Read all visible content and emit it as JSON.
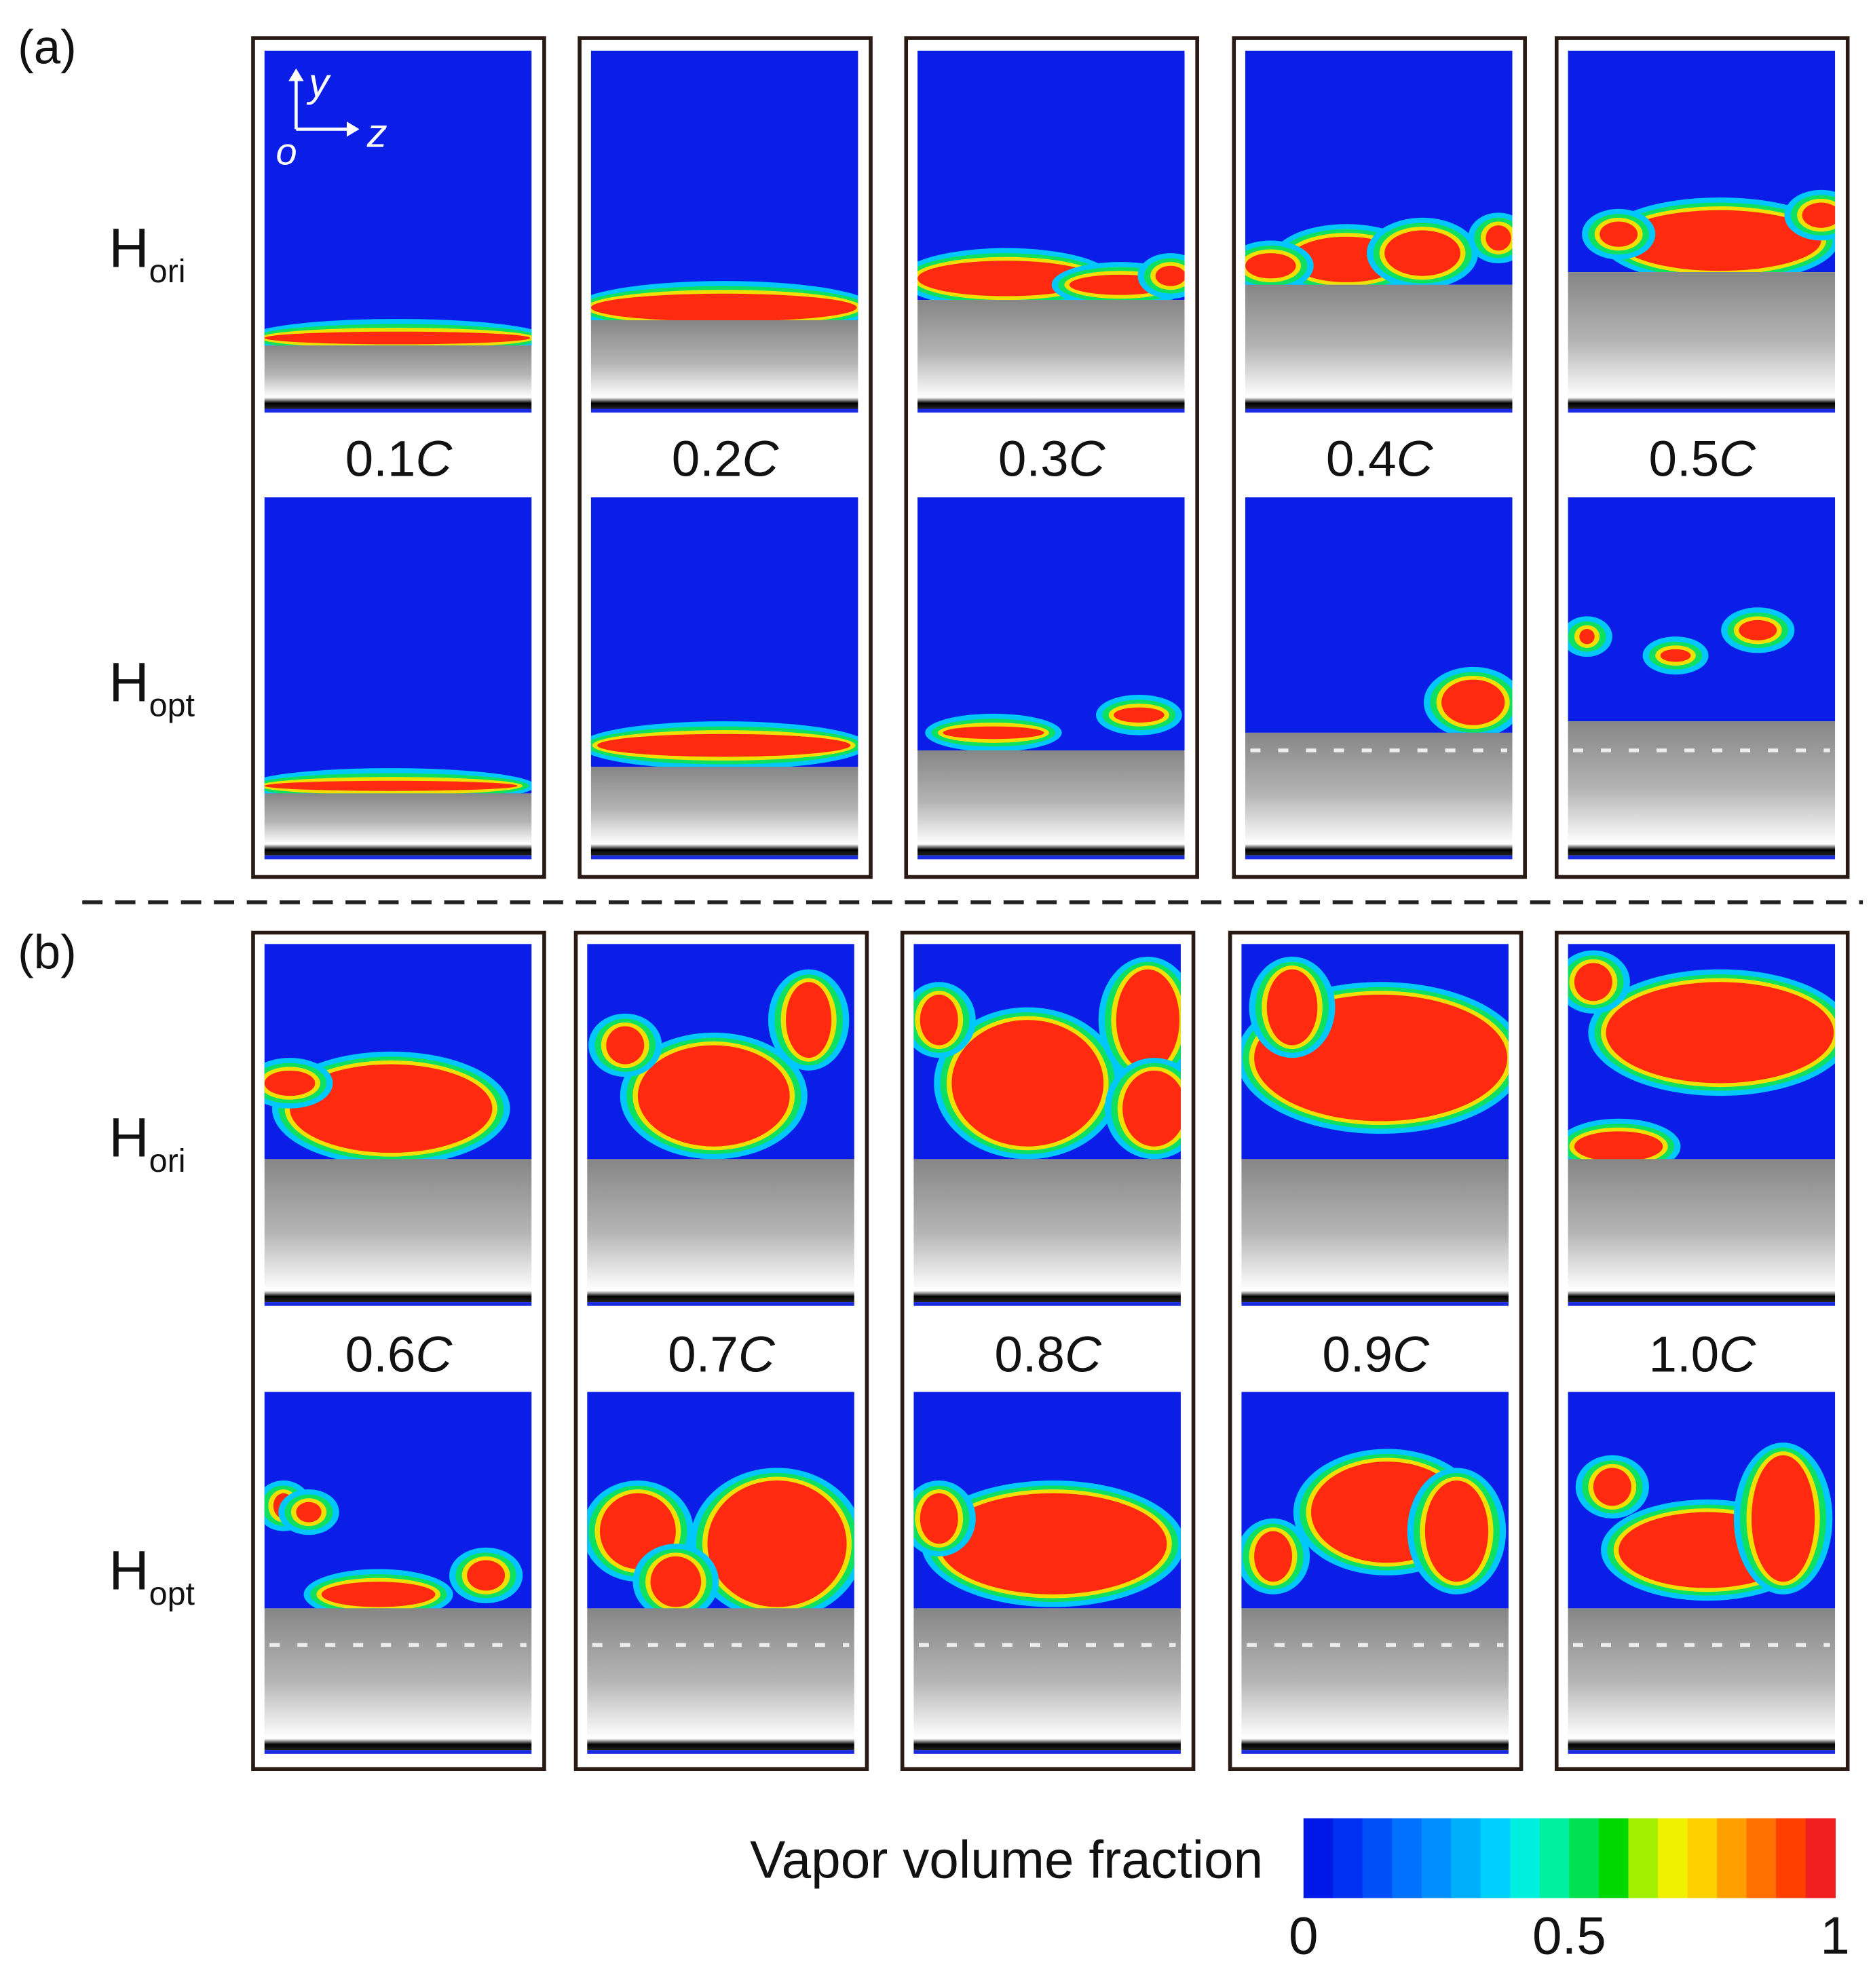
{
  "groups": [
    {
      "label": "(a)",
      "rows": [
        {
          "name": "H",
          "sub": "ori"
        },
        {
          "name": "H",
          "sub": "opt"
        }
      ],
      "times": [
        {
          "value": "0.1",
          "unit": "C"
        },
        {
          "value": "0.2",
          "unit": "C"
        },
        {
          "value": "0.3",
          "unit": "C"
        },
        {
          "value": "0.4",
          "unit": "C"
        },
        {
          "value": "0.5",
          "unit": "C"
        }
      ]
    },
    {
      "label": "(b)",
      "rows": [
        {
          "name": "H",
          "sub": "ori"
        },
        {
          "name": "H",
          "sub": "opt"
        }
      ],
      "times": [
        {
          "value": "0.6",
          "unit": "C"
        },
        {
          "value": "0.7",
          "unit": "C"
        },
        {
          "value": "0.8",
          "unit": "C"
        },
        {
          "value": "0.9",
          "unit": "C"
        },
        {
          "value": "1.0",
          "unit": "C"
        }
      ]
    }
  ],
  "axes": {
    "vertical": "y",
    "horizontal": "z",
    "origin": "o"
  },
  "colorbar": {
    "title": "Vapor volume fraction",
    "lim": [
      0,
      1
    ],
    "ticks": [
      0,
      0.5,
      1
    ],
    "colors": [
      "#0018e8",
      "#0030f0",
      "#0050f8",
      "#0070ff",
      "#0090ff",
      "#00b0ff",
      "#00d0ff",
      "#00f0e0",
      "#00f0a0",
      "#00e050",
      "#00d800",
      "#a0f000",
      "#f0f000",
      "#ffd000",
      "#ffa000",
      "#ff7000",
      "#ff4000",
      "#f02020"
    ]
  }
}
